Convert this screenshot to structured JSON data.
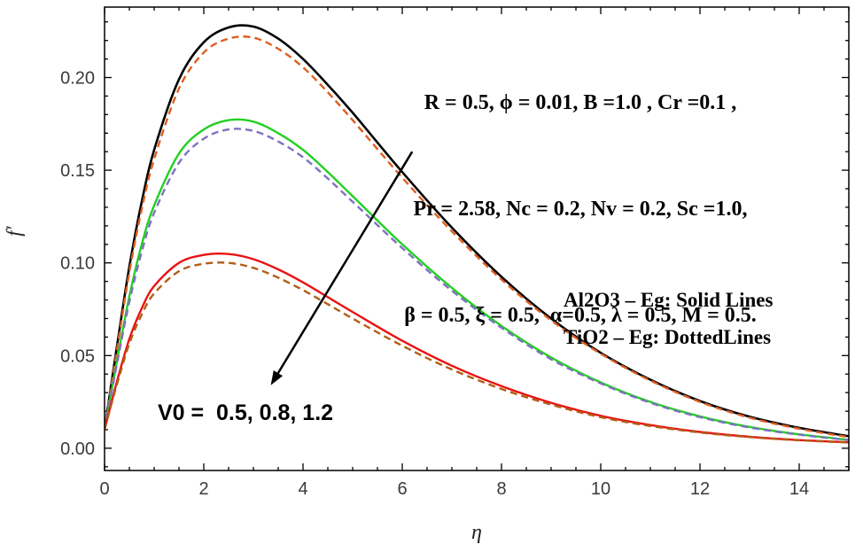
{
  "figure": {
    "background": "#ffffff",
    "frame_color": "#000000"
  },
  "chart_data": {
    "type": "line",
    "title": "",
    "xlabel": "η",
    "ylabel": "f′",
    "xlim": [
      0,
      15
    ],
    "ylim": [
      -0.012,
      0.238
    ],
    "grid": false,
    "legend_position": "annotations inside plot",
    "x_ticks": {
      "values": [
        0,
        2,
        4,
        6,
        8,
        10,
        12,
        14
      ],
      "labels": [
        "0",
        "2",
        "4",
        "6",
        "8",
        "10",
        "12",
        "14"
      ],
      "minor_step": 0.5
    },
    "y_ticks": {
      "values": [
        0,
        0.05,
        0.1,
        0.15,
        0.2
      ],
      "labels": [
        "0.00",
        "0.05",
        "0.10",
        "0.15",
        "0.20"
      ],
      "minor_step": 0.01
    },
    "x": [
      0,
      0.25,
      0.5,
      0.75,
      1,
      1.5,
      2,
      2.5,
      3,
      3.5,
      4,
      4.5,
      5,
      6,
      7,
      8,
      9,
      10,
      11,
      12,
      13,
      14,
      15
    ],
    "series": [
      {
        "name": "Al2O3–Eg, V0=0.5",
        "material": "Al2O3–Eg",
        "v0": 0.5,
        "style": "solid",
        "color": "#000000",
        "values": [
          0.01,
          0.055,
          0.098,
          0.133,
          0.161,
          0.199,
          0.219,
          0.227,
          0.2275,
          0.221,
          0.21,
          0.196,
          0.181,
          0.149,
          0.119,
          0.0925,
          0.07,
          0.0515,
          0.037,
          0.0255,
          0.017,
          0.011,
          0.0065
        ]
      },
      {
        "name": "TiO2–Eg, V0=0.5",
        "material": "TiO2–Eg",
        "v0": 0.5,
        "style": "dashed",
        "color": "#e05e20",
        "values": [
          0.01,
          0.053,
          0.095,
          0.129,
          0.156,
          0.194,
          0.2135,
          0.221,
          0.2215,
          0.2155,
          0.2055,
          0.192,
          0.177,
          0.146,
          0.117,
          0.091,
          0.069,
          0.051,
          0.0365,
          0.025,
          0.0165,
          0.0105,
          0.006
        ]
      },
      {
        "name": "Al2O3–Eg, V0=0.8",
        "material": "Al2O3–Eg",
        "v0": 0.8,
        "style": "solid",
        "color": "#22d022",
        "values": [
          0.01,
          0.047,
          0.082,
          0.11,
          0.131,
          0.159,
          0.172,
          0.177,
          0.1762,
          0.17,
          0.161,
          0.149,
          0.136,
          0.11,
          0.0865,
          0.066,
          0.049,
          0.0355,
          0.025,
          0.0172,
          0.0115,
          0.0075,
          0.0045
        ]
      },
      {
        "name": "TiO2–Eg, V0=0.8",
        "material": "TiO2–Eg",
        "v0": 0.8,
        "style": "dashed",
        "color": "#7e72c0",
        "values": [
          0.01,
          0.0455,
          0.079,
          0.106,
          0.127,
          0.154,
          0.167,
          0.172,
          0.1712,
          0.1655,
          0.157,
          0.1455,
          0.133,
          0.108,
          0.085,
          0.065,
          0.048,
          0.035,
          0.0245,
          0.0168,
          0.0112,
          0.0073,
          0.0044
        ]
      },
      {
        "name": "Al2O3–Eg, V0=1.2",
        "material": "Al2O3–Eg",
        "v0": 1.2,
        "style": "solid",
        "color": "#ea1212",
        "values": [
          0.01,
          0.036,
          0.059,
          0.0755,
          0.0875,
          0.1,
          0.1043,
          0.1048,
          0.102,
          0.0965,
          0.0895,
          0.0815,
          0.0735,
          0.058,
          0.0445,
          0.0335,
          0.0245,
          0.0175,
          0.0125,
          0.0088,
          0.0062,
          0.0044,
          0.0032
        ]
      },
      {
        "name": "TiO2–Eg, V0=1.2",
        "material": "TiO2–Eg",
        "v0": 1.2,
        "style": "dashed",
        "color": "#b05e16",
        "values": [
          0.01,
          0.0345,
          0.0565,
          0.0722,
          0.0835,
          0.0955,
          0.0995,
          0.1,
          0.0973,
          0.092,
          0.0853,
          0.0777,
          0.07,
          0.0553,
          0.0425,
          0.032,
          0.0235,
          0.0168,
          0.012,
          0.0085,
          0.006,
          0.0043,
          0.0031
        ]
      }
    ],
    "arrow": {
      "from": [
        6.2,
        0.16
      ],
      "to": [
        3.35,
        0.034
      ]
    }
  },
  "annotations": {
    "params": [
      "R = 0.5, ϕ = 0.01, B =1.0 , Cr =0.1 ,",
      "Pr = 2.58, Nc = 0.2, Nv = 0.2, Sc =1.0,",
      "β = 0.5, ξ = 0.5,  α=0.5, λ = 0.5, M = 0.5."
    ],
    "legend_solid": "Al2O3 – Eg: Solid Lines",
    "legend_dashed": "TiO2 – Eg: DottedLines",
    "v0_label": "V0 =  0.5, 0.8, 1.2"
  }
}
